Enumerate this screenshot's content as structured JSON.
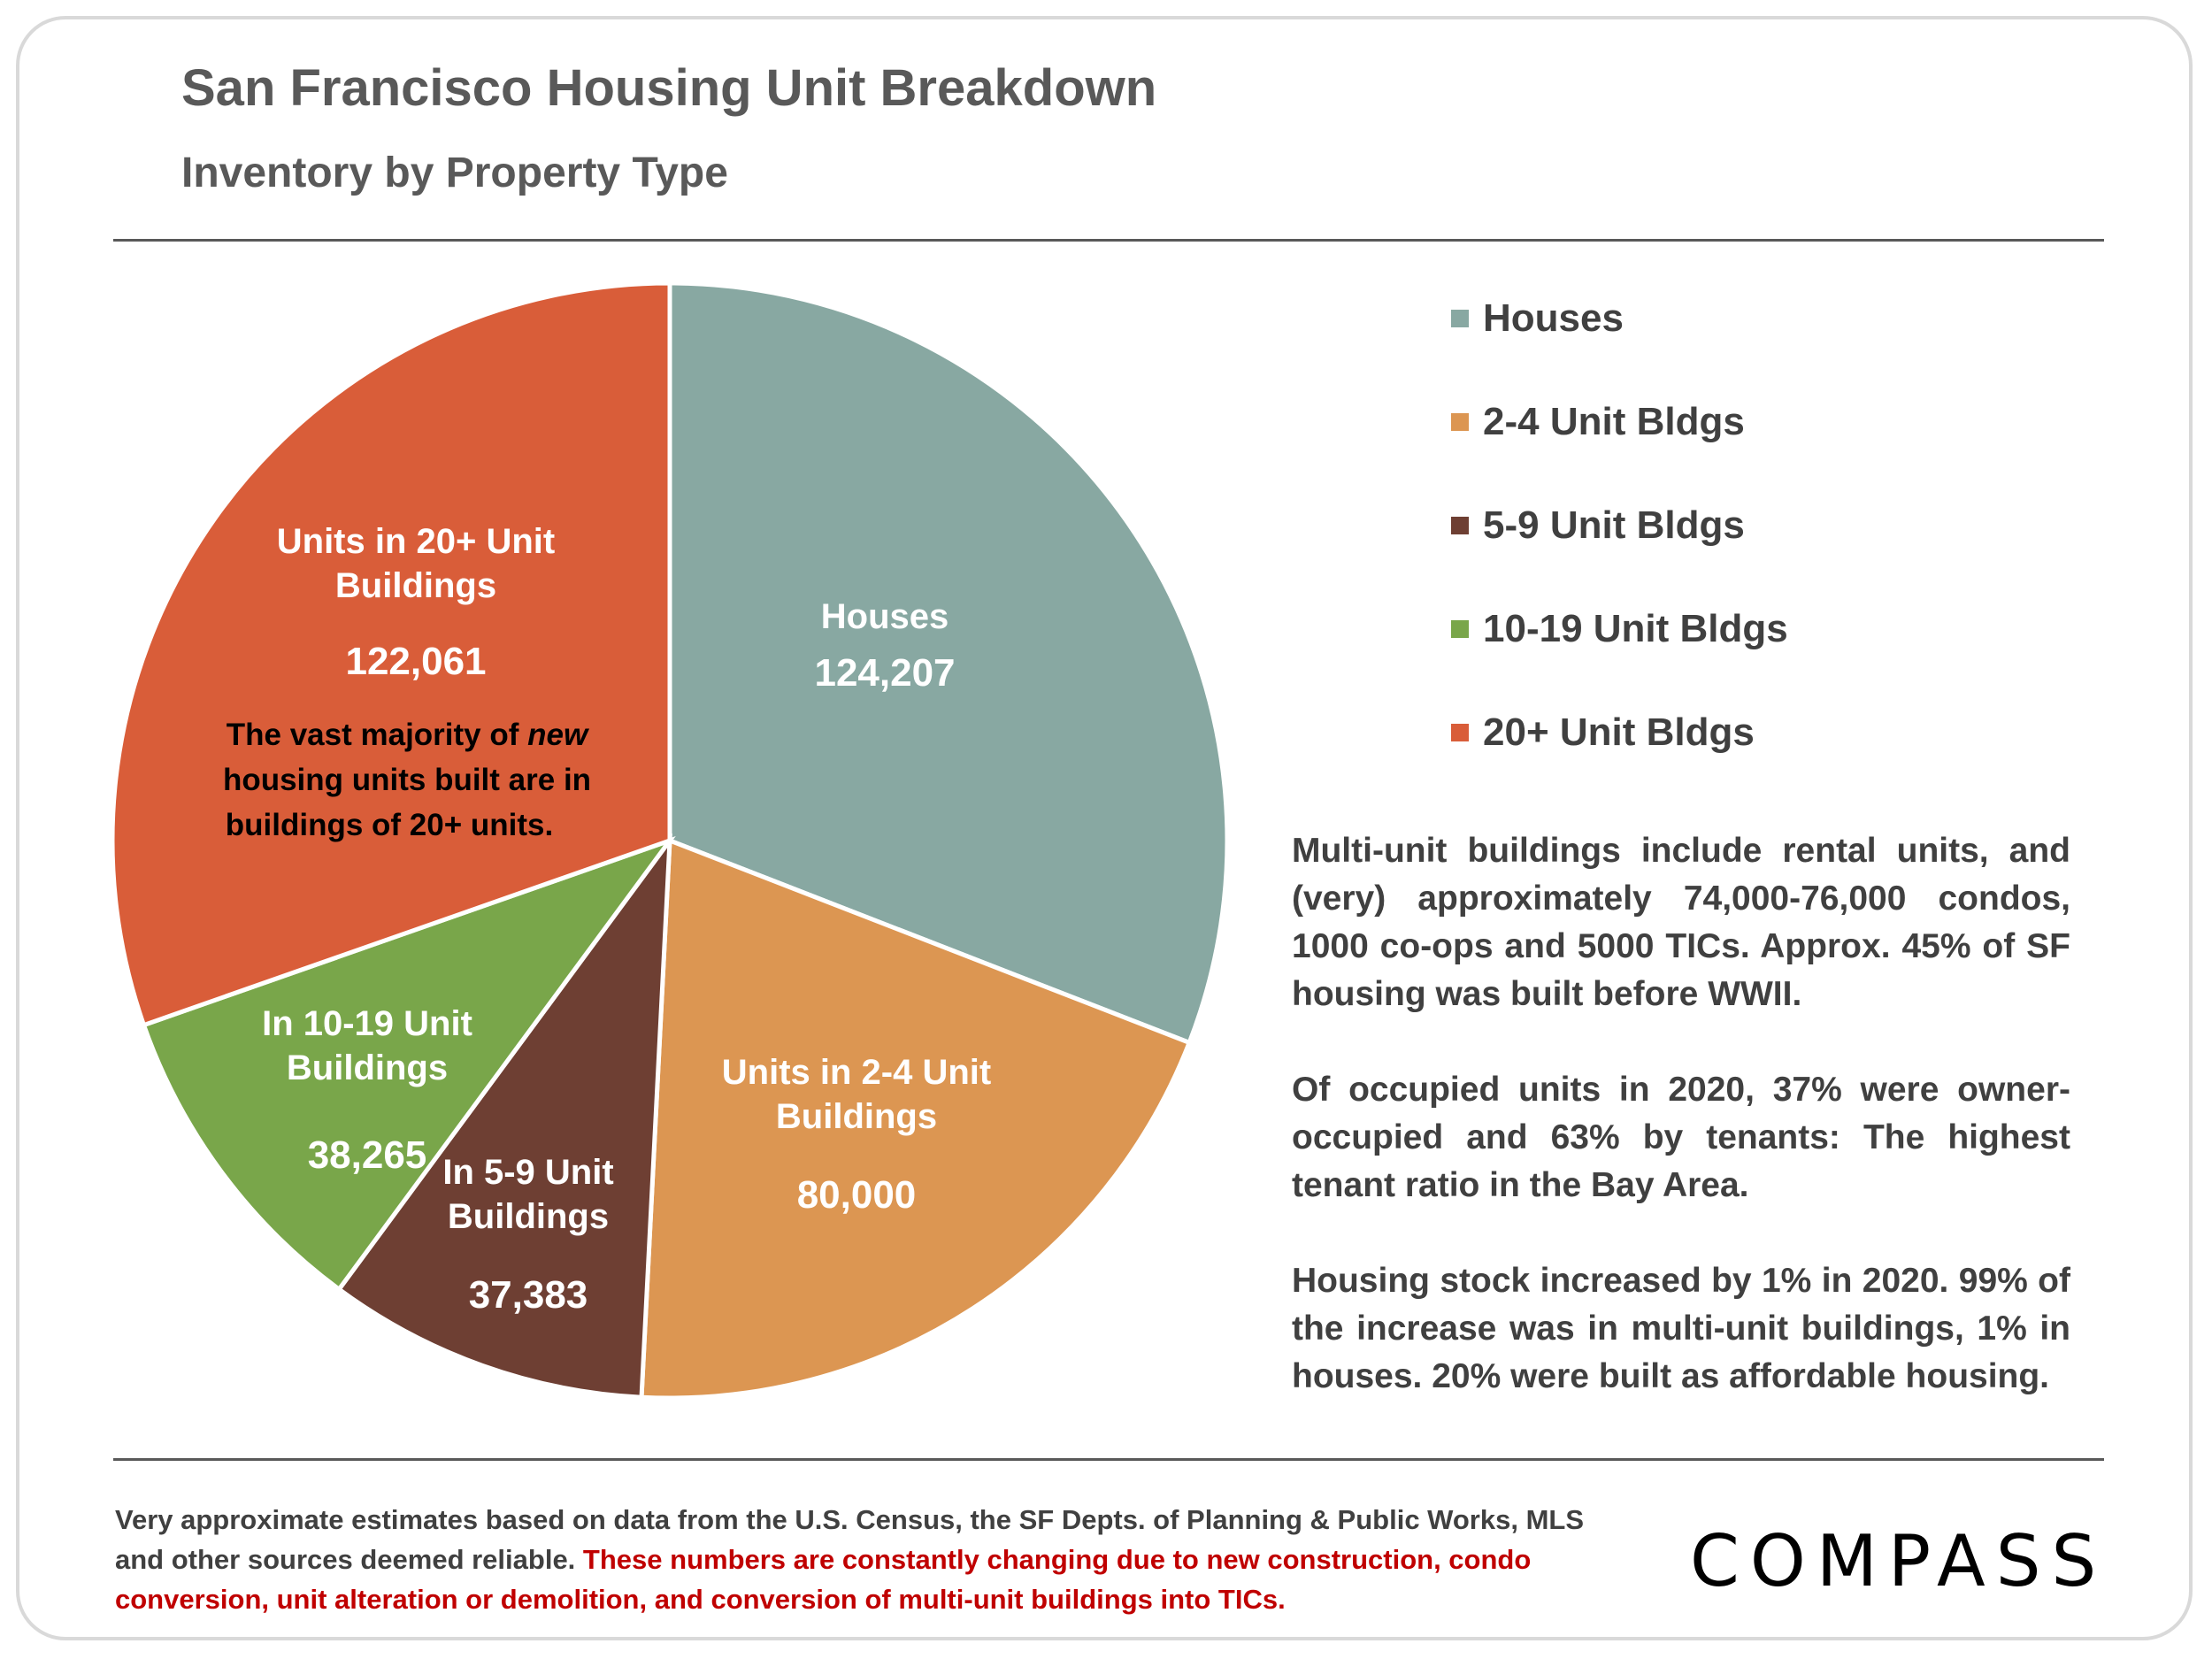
{
  "chart_data": {
    "type": "pie",
    "title": "San Francisco Housing Unit Breakdown",
    "subtitle": "Inventory by Property Type",
    "categories": [
      "Houses",
      "2-4 Unit Bldgs",
      "5-9 Unit Bldgs",
      "10-19 Unit Bldgs",
      "20+ Unit Bldgs"
    ],
    "values": [
      124207,
      80000,
      37383,
      38265,
      122061
    ],
    "value_labels": [
      "124,207",
      "80,000",
      "37,383",
      "38,265",
      "122,061"
    ],
    "slice_labels": [
      [
        "Houses"
      ],
      [
        "Units in 2-4 Unit",
        "Buildings"
      ],
      [
        "In 5-9 Unit",
        "Buildings"
      ],
      [
        "In 10-19 Unit",
        "Buildings"
      ],
      [
        "Units in 20+ Unit",
        "Buildings"
      ]
    ],
    "colors": [
      "#88a8a2",
      "#dc9652",
      "#6e3f33",
      "#79a64a",
      "#d95d39"
    ],
    "legend_position": "right",
    "annotation": {
      "prefix": "The vast majority of ",
      "emphasis": "new",
      "line2": "housing units built are in",
      "line3": "buildings of 20+ units."
    }
  },
  "legend": [
    {
      "label": "Houses",
      "color": "#88a8a2"
    },
    {
      "label": "2-4 Unit Bldgs",
      "color": "#dc9652"
    },
    {
      "label": "5-9 Unit Bldgs",
      "color": "#6e3f33"
    },
    {
      "label": "10-19 Unit Bldgs",
      "color": "#79a64a"
    },
    {
      "label": "20+ Unit Bldgs",
      "color": "#d95d39"
    }
  ],
  "notes": [
    "Multi-unit buildings include rental units, and (very) approximately 74,000-76,000 condos, 1000 co-ops and 5000 TICs. Approx. 45% of SF housing was built before WWII.",
    "Of occupied units in 2020, 37% were owner-occupied and 63% by tenants: The highest tenant ratio in the Bay Area.",
    "Housing stock increased by 1% in 2020. 99% of the increase was in multi-unit buildings, 1% in houses. 20% were built as affordable housing."
  ],
  "footer": {
    "text": "Very approximate estimates based on data from the U.S. Census,  the SF Depts. of Planning & Public Works, MLS and other sources deemed reliable.",
    "highlight": "These numbers are constantly changing due to new construction, condo conversion, unit alteration or demolition, and conversion of multi-unit buildings into TICs."
  },
  "logo": "COMPASS"
}
